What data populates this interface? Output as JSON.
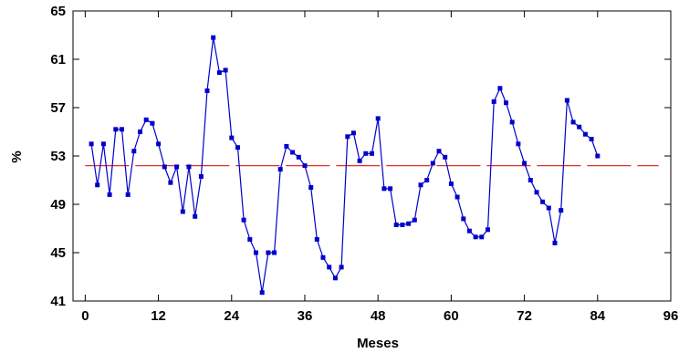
{
  "chart_data": {
    "type": "line",
    "title": "",
    "xlabel": "Meses",
    "ylabel": "%",
    "xlim": [
      -2,
      96
    ],
    "ylim": [
      41,
      65
    ],
    "xticks": [
      0,
      12,
      24,
      36,
      48,
      60,
      72,
      84,
      96
    ],
    "yticks": [
      41,
      45,
      49,
      53,
      57,
      61,
      65
    ],
    "xtick_labels": [
      "0",
      "12",
      "24",
      "36",
      "48",
      "60",
      "72",
      "84",
      "96"
    ],
    "ytick_labels": [
      "41",
      "45",
      "49",
      "53",
      "57",
      "61",
      "65"
    ],
    "grid": false,
    "series": [
      {
        "color": "#0000cc",
        "style": "line-with-square-markers",
        "x": [
          1,
          2,
          3,
          4,
          5,
          6,
          7,
          8,
          9,
          10,
          11,
          12,
          13,
          14,
          15,
          16,
          17,
          18,
          19,
          20,
          21,
          22,
          23,
          24,
          25,
          26,
          27,
          28,
          29,
          30,
          31,
          32,
          33,
          34,
          35,
          36,
          37,
          38,
          39,
          40,
          41,
          42,
          43,
          44,
          45,
          46,
          47,
          48,
          49,
          50,
          51,
          52,
          53,
          54,
          55,
          56,
          57,
          58,
          59,
          60,
          61,
          62,
          63,
          64,
          65,
          66,
          67,
          68,
          69,
          70,
          71,
          72,
          73,
          74,
          75,
          76,
          77,
          78,
          79,
          80,
          81,
          82,
          83,
          84
        ],
        "values": [
          54.0,
          50.6,
          54.0,
          49.8,
          55.2,
          55.2,
          49.8,
          53.4,
          55.0,
          56.0,
          55.7,
          54.0,
          52.1,
          50.8,
          52.1,
          48.4,
          52.1,
          48.0,
          51.3,
          58.4,
          62.8,
          59.9,
          60.1,
          54.5,
          53.7,
          47.7,
          46.1,
          45.0,
          41.7,
          45.0,
          45.0,
          51.9,
          53.8,
          53.3,
          52.9,
          52.2,
          50.4,
          46.1,
          44.6,
          43.8,
          42.9,
          43.8,
          54.6,
          54.9,
          52.6,
          53.2,
          53.2,
          56.1,
          50.3,
          50.3,
          47.3,
          47.3,
          47.4,
          47.7,
          50.6,
          51.0,
          52.4,
          53.4,
          52.9,
          50.7,
          49.6,
          47.8,
          46.8,
          46.3,
          46.3,
          46.9,
          57.5,
          58.6,
          57.4,
          55.8,
          54.0,
          52.4,
          51.0,
          50.0,
          49.2,
          48.7,
          45.8,
          48.5,
          57.6,
          55.8,
          55.4,
          54.8,
          54.4,
          53.0
        ]
      },
      {
        "color": "#e03030",
        "style": "dashed-reference-line",
        "values": [
          52.2
        ]
      }
    ]
  }
}
